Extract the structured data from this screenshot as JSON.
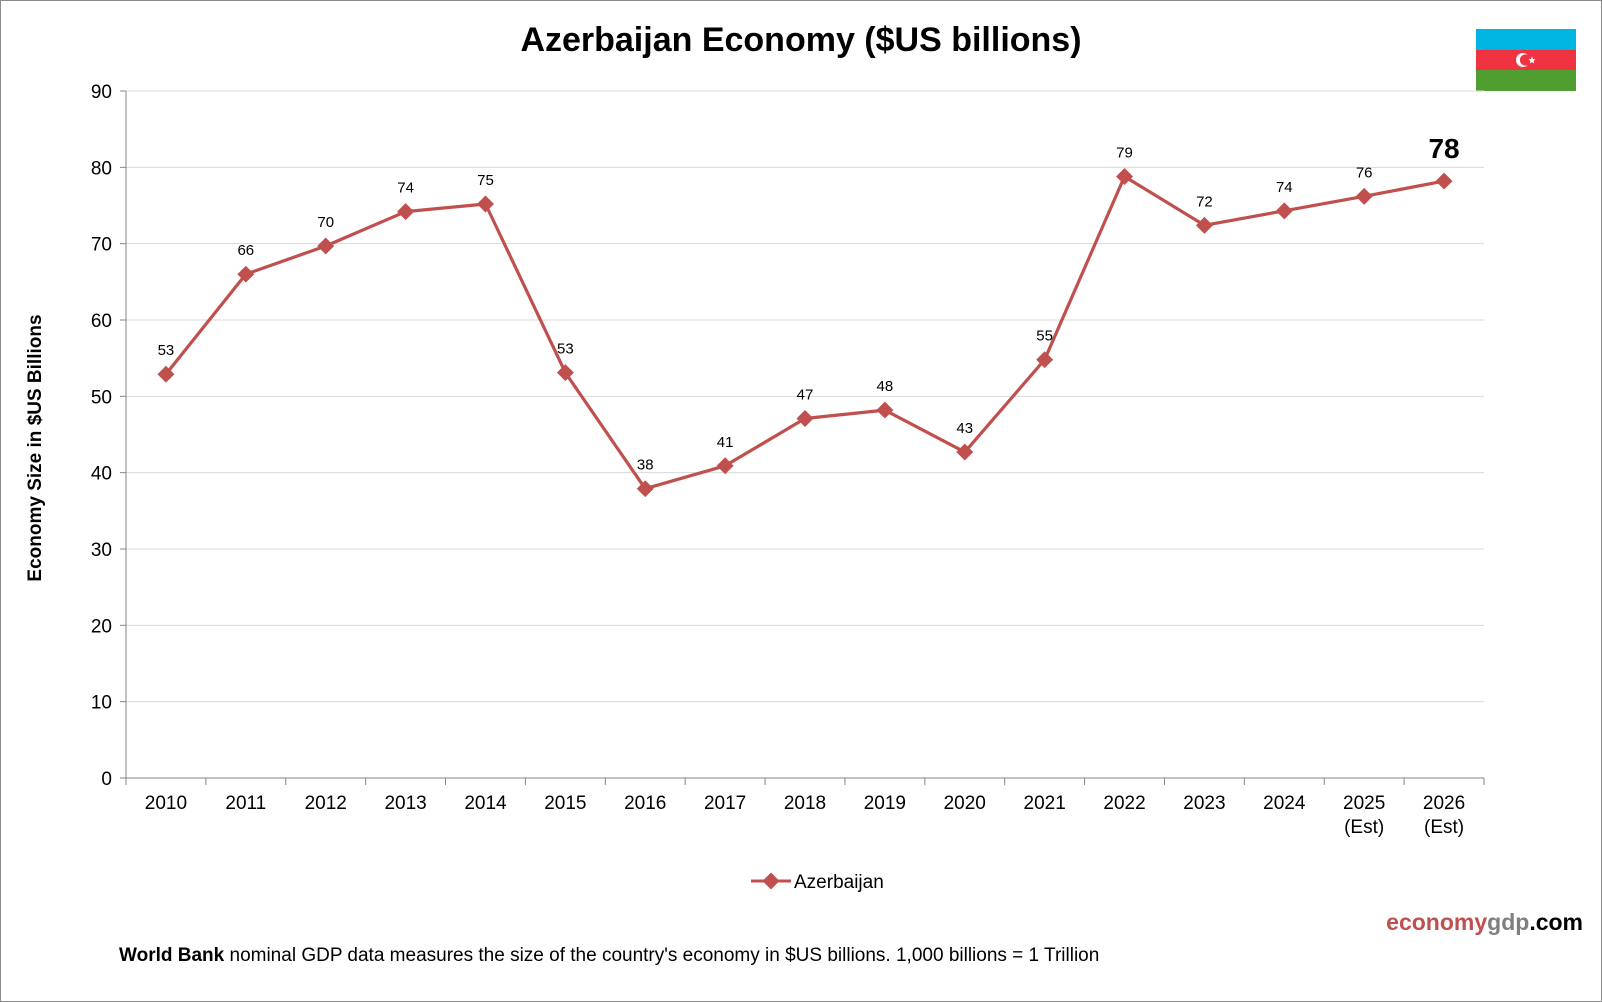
{
  "chart_data": {
    "type": "line",
    "title": "Azerbaijan Economy ($US billions)",
    "ylabel": "Economy Size in $US Billions",
    "xlabel": "",
    "ylim": [
      0,
      90
    ],
    "y_ticks": [
      0,
      10,
      20,
      30,
      40,
      50,
      60,
      70,
      80,
      90
    ],
    "grid": true,
    "legend": "bottom-center",
    "categories": [
      "2010",
      "2011",
      "2012",
      "2013",
      "2014",
      "2015",
      "2016",
      "2017",
      "2018",
      "2019",
      "2020",
      "2021",
      "2022",
      "2023",
      "2024",
      "2025\n(Est)",
      "2026\n(Est)"
    ],
    "series": [
      {
        "name": "Azerbaijan",
        "color": "#c0504d",
        "values": [
          52.9,
          66.0,
          69.7,
          74.2,
          75.2,
          53.1,
          37.9,
          40.9,
          47.1,
          48.2,
          42.7,
          54.8,
          78.8,
          72.4,
          74.3,
          76.2,
          78.2
        ],
        "labels": [
          "53",
          "66",
          "70",
          "74",
          "75",
          "53",
          "38",
          "41",
          "47",
          "48",
          "43",
          "55",
          "79",
          "72",
          "74",
          "76",
          "78"
        ]
      }
    ]
  },
  "footnote": {
    "source": "World Bank",
    "text": " nominal GDP data  measures the size of the country's economy in $US billions.  1,000 billions = 1 Trillion"
  },
  "brand": {
    "part1": "economy",
    "part2": "gdp",
    "part3": ".com",
    "color1": "#c0504d",
    "color2": "#7f7f7f",
    "color3": "#000000"
  },
  "flag": {
    "icon": "azerbaijan-flag-icon",
    "colors": [
      "#00b5e2",
      "#ef3340",
      "#509e2f"
    ]
  }
}
